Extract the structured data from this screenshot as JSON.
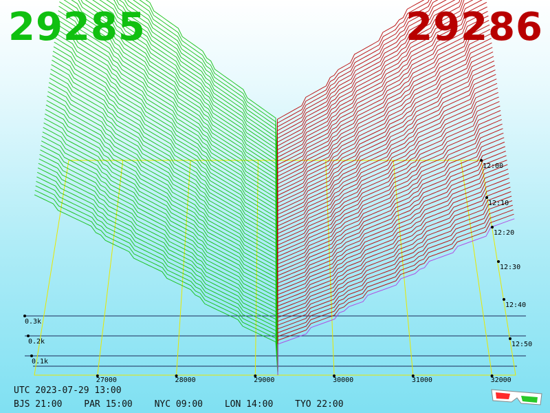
{
  "header": {
    "bid_price": "29285",
    "ask_price": "29286",
    "colors": {
      "bid": "#10c010",
      "ask": "#b80000",
      "axis": "#e8e800"
    }
  },
  "footer": {
    "utc_time": "UTC 2023-07-29 13:00",
    "cities": [
      {
        "label": "BJS 21:00"
      },
      {
        "label": "PAR 15:00"
      },
      {
        "label": "NYC 09:00"
      },
      {
        "label": "LON 14:00"
      },
      {
        "label": "TYO 22:00"
      }
    ],
    "icon": "3d-glasses-icon"
  },
  "chart_data": {
    "type": "area",
    "price_axis": {
      "ticks": [
        27000,
        28000,
        29000,
        30000,
        31000,
        32000
      ],
      "mid_price": 29285.5
    },
    "volume_axis": {
      "ticks": [
        "0.1k",
        "0.2k",
        "0.3k"
      ]
    },
    "time_axis": {
      "ticks": [
        "12:00",
        "12:10",
        "12:20",
        "12:30",
        "12:40",
        "12:50"
      ]
    },
    "snapshots": 60,
    "series": [
      {
        "name": "bid",
        "color": "#10c010"
      },
      {
        "name": "ask",
        "color": "#b80000"
      }
    ]
  }
}
